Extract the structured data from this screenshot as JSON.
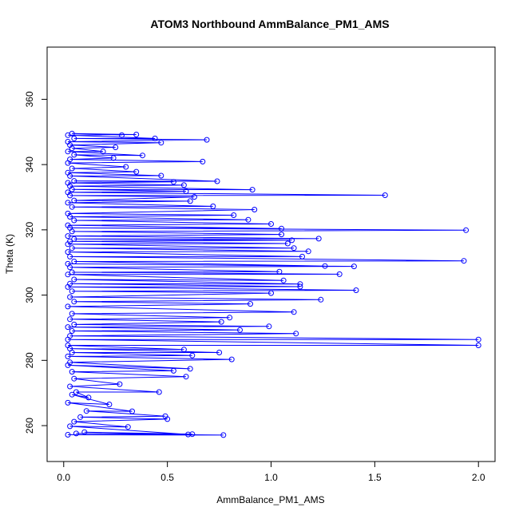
{
  "chart_data": {
    "type": "scatter",
    "title": "ATOM3 Northbound AmmBalance_PM1_AMS",
    "xlabel": "AmmBalance_PM1_AMS",
    "ylabel": "Theta (K)",
    "xlim": [
      -0.08,
      2.08
    ],
    "ylim": [
      249,
      376
    ],
    "x_ticks": [
      0.0,
      0.5,
      1.0,
      1.5,
      2.0
    ],
    "x_tick_labels": [
      "0.0",
      "0.5",
      "1.0",
      "1.5",
      "2.0"
    ],
    "y_ticks": [
      260,
      280,
      300,
      320,
      340,
      360
    ],
    "y_tick_labels": [
      "260",
      "280",
      "300",
      "320",
      "340",
      "360"
    ],
    "grid": false,
    "marker": "open-circle",
    "connected_by_lines": true,
    "series_color": "#0000ff",
    "series": [
      {
        "points": [
          {
            "x": 0.02,
            "y": 257.2
          },
          {
            "x": 0.77,
            "y": 257.1
          },
          {
            "x": 0.06,
            "y": 257.6
          },
          {
            "x": 0.62,
            "y": 257.4
          },
          {
            "x": 0.1,
            "y": 258.0
          },
          {
            "x": 0.6,
            "y": 257.3
          },
          {
            "x": 0.03,
            "y": 259.8
          },
          {
            "x": 0.31,
            "y": 259.6
          },
          {
            "x": 0.05,
            "y": 261.2
          },
          {
            "x": 0.5,
            "y": 262.0
          },
          {
            "x": 0.08,
            "y": 262.6
          },
          {
            "x": 0.49,
            "y": 262.9
          },
          {
            "x": 0.11,
            "y": 264.5
          },
          {
            "x": 0.33,
            "y": 264.4
          },
          {
            "x": 0.02,
            "y": 267.0
          },
          {
            "x": 0.22,
            "y": 266.5
          },
          {
            "x": 0.04,
            "y": 269.5
          },
          {
            "x": 0.12,
            "y": 268.6
          },
          {
            "x": 0.06,
            "y": 270.3
          },
          {
            "x": 0.46,
            "y": 270.3
          },
          {
            "x": 0.03,
            "y": 272.0
          },
          {
            "x": 0.27,
            "y": 272.7
          },
          {
            "x": 0.05,
            "y": 274.4
          },
          {
            "x": 0.59,
            "y": 275.0
          },
          {
            "x": 0.04,
            "y": 276.5
          },
          {
            "x": 0.53,
            "y": 276.8
          },
          {
            "x": 0.02,
            "y": 278.5
          },
          {
            "x": 0.61,
            "y": 277.4
          },
          {
            "x": 0.03,
            "y": 279.4
          },
          {
            "x": 0.81,
            "y": 280.3
          },
          {
            "x": 0.02,
            "y": 281.2
          },
          {
            "x": 0.62,
            "y": 281.5
          },
          {
            "x": 0.04,
            "y": 282.4
          },
          {
            "x": 0.75,
            "y": 282.4
          },
          {
            "x": 0.03,
            "y": 283.6
          },
          {
            "x": 0.58,
            "y": 283.3
          },
          {
            "x": 0.02,
            "y": 284.6
          },
          {
            "x": 2.0,
            "y": 284.6
          },
          {
            "x": 0.02,
            "y": 286.4
          },
          {
            "x": 2.0,
            "y": 286.4
          },
          {
            "x": 0.03,
            "y": 287.5
          },
          {
            "x": 1.12,
            "y": 288.2
          },
          {
            "x": 0.04,
            "y": 289.0
          },
          {
            "x": 0.85,
            "y": 289.3
          },
          {
            "x": 0.02,
            "y": 290.2
          },
          {
            "x": 0.99,
            "y": 290.4
          },
          {
            "x": 0.05,
            "y": 291.0
          },
          {
            "x": 0.76,
            "y": 291.8
          },
          {
            "x": 0.03,
            "y": 292.6
          },
          {
            "x": 0.8,
            "y": 293.1
          },
          {
            "x": 0.04,
            "y": 294.3
          },
          {
            "x": 1.11,
            "y": 294.8
          },
          {
            "x": 0.02,
            "y": 296.5
          },
          {
            "x": 0.9,
            "y": 297.3
          },
          {
            "x": 0.05,
            "y": 298.0
          },
          {
            "x": 1.24,
            "y": 298.6
          },
          {
            "x": 0.03,
            "y": 299.4
          },
          {
            "x": 1.0,
            "y": 300.6
          },
          {
            "x": 0.04,
            "y": 301.2
          },
          {
            "x": 1.41,
            "y": 301.5
          },
          {
            "x": 0.02,
            "y": 302.5
          },
          {
            "x": 1.14,
            "y": 302.6
          },
          {
            "x": 0.03,
            "y": 303.5
          },
          {
            "x": 1.14,
            "y": 303.4
          },
          {
            "x": 0.05,
            "y": 304.8
          },
          {
            "x": 1.06,
            "y": 304.5
          },
          {
            "x": 0.02,
            "y": 306.3
          },
          {
            "x": 1.33,
            "y": 306.4
          },
          {
            "x": 0.04,
            "y": 307.0
          },
          {
            "x": 1.04,
            "y": 307.2
          },
          {
            "x": 0.03,
            "y": 308.5
          },
          {
            "x": 1.4,
            "y": 308.8
          },
          {
            "x": 0.02,
            "y": 309.6
          },
          {
            "x": 1.26,
            "y": 308.9
          },
          {
            "x": 0.05,
            "y": 310.3
          },
          {
            "x": 1.93,
            "y": 310.5
          },
          {
            "x": 0.03,
            "y": 311.8
          },
          {
            "x": 1.15,
            "y": 311.8
          },
          {
            "x": 0.02,
            "y": 313.2
          },
          {
            "x": 1.18,
            "y": 313.4
          },
          {
            "x": 0.04,
            "y": 314.4
          },
          {
            "x": 1.11,
            "y": 314.4
          },
          {
            "x": 0.02,
            "y": 315.6
          },
          {
            "x": 1.08,
            "y": 315.8
          },
          {
            "x": 0.03,
            "y": 316.5
          },
          {
            "x": 1.1,
            "y": 316.8
          },
          {
            "x": 0.05,
            "y": 317.2
          },
          {
            "x": 1.23,
            "y": 317.3
          },
          {
            "x": 0.02,
            "y": 318.1
          },
          {
            "x": 1.05,
            "y": 318.6
          },
          {
            "x": 0.04,
            "y": 319.5
          },
          {
            "x": 1.94,
            "y": 319.9
          },
          {
            "x": 0.03,
            "y": 320.6
          },
          {
            "x": 1.05,
            "y": 320.4
          },
          {
            "x": 0.02,
            "y": 321.4
          },
          {
            "x": 1.0,
            "y": 321.8
          },
          {
            "x": 0.05,
            "y": 322.9
          },
          {
            "x": 0.89,
            "y": 323.1
          },
          {
            "x": 0.03,
            "y": 324.0
          },
          {
            "x": 0.82,
            "y": 324.5
          },
          {
            "x": 0.02,
            "y": 325.0
          },
          {
            "x": 0.92,
            "y": 326.2
          },
          {
            "x": 0.04,
            "y": 327.0
          },
          {
            "x": 0.72,
            "y": 327.2
          },
          {
            "x": 0.02,
            "y": 328.3
          },
          {
            "x": 0.61,
            "y": 328.8
          },
          {
            "x": 0.05,
            "y": 329.0
          },
          {
            "x": 0.63,
            "y": 330.1
          },
          {
            "x": 0.03,
            "y": 330.5
          },
          {
            "x": 1.55,
            "y": 330.6
          },
          {
            "x": 0.02,
            "y": 331.5
          },
          {
            "x": 0.59,
            "y": 331.8
          },
          {
            "x": 0.04,
            "y": 332.4
          },
          {
            "x": 0.91,
            "y": 332.3
          },
          {
            "x": 0.03,
            "y": 333.4
          },
          {
            "x": 0.58,
            "y": 333.7
          },
          {
            "x": 0.02,
            "y": 334.4
          },
          {
            "x": 0.53,
            "y": 334.7
          },
          {
            "x": 0.05,
            "y": 335.0
          },
          {
            "x": 0.74,
            "y": 334.9
          },
          {
            "x": 0.03,
            "y": 336.5
          },
          {
            "x": 0.47,
            "y": 336.6
          },
          {
            "x": 0.02,
            "y": 337.5
          },
          {
            "x": 0.35,
            "y": 337.8
          },
          {
            "x": 0.04,
            "y": 338.8
          },
          {
            "x": 0.3,
            "y": 339.3
          },
          {
            "x": 0.02,
            "y": 340.5
          },
          {
            "x": 0.67,
            "y": 340.9
          },
          {
            "x": 0.03,
            "y": 341.6
          },
          {
            "x": 0.24,
            "y": 342.0
          },
          {
            "x": 0.05,
            "y": 343.0
          },
          {
            "x": 0.38,
            "y": 342.8
          },
          {
            "x": 0.02,
            "y": 344.0
          },
          {
            "x": 0.19,
            "y": 344.0
          },
          {
            "x": 0.04,
            "y": 345.0
          },
          {
            "x": 0.25,
            "y": 345.3
          },
          {
            "x": 0.03,
            "y": 346.0
          },
          {
            "x": 0.47,
            "y": 346.7
          },
          {
            "x": 0.02,
            "y": 347.0
          },
          {
            "x": 0.69,
            "y": 347.6
          },
          {
            "x": 0.05,
            "y": 348.0
          },
          {
            "x": 0.44,
            "y": 348.0
          },
          {
            "x": 0.02,
            "y": 349.0
          },
          {
            "x": 0.35,
            "y": 349.2
          },
          {
            "x": 0.04,
            "y": 349.5
          },
          {
            "x": 0.28,
            "y": 349.0
          }
        ]
      }
    ]
  }
}
